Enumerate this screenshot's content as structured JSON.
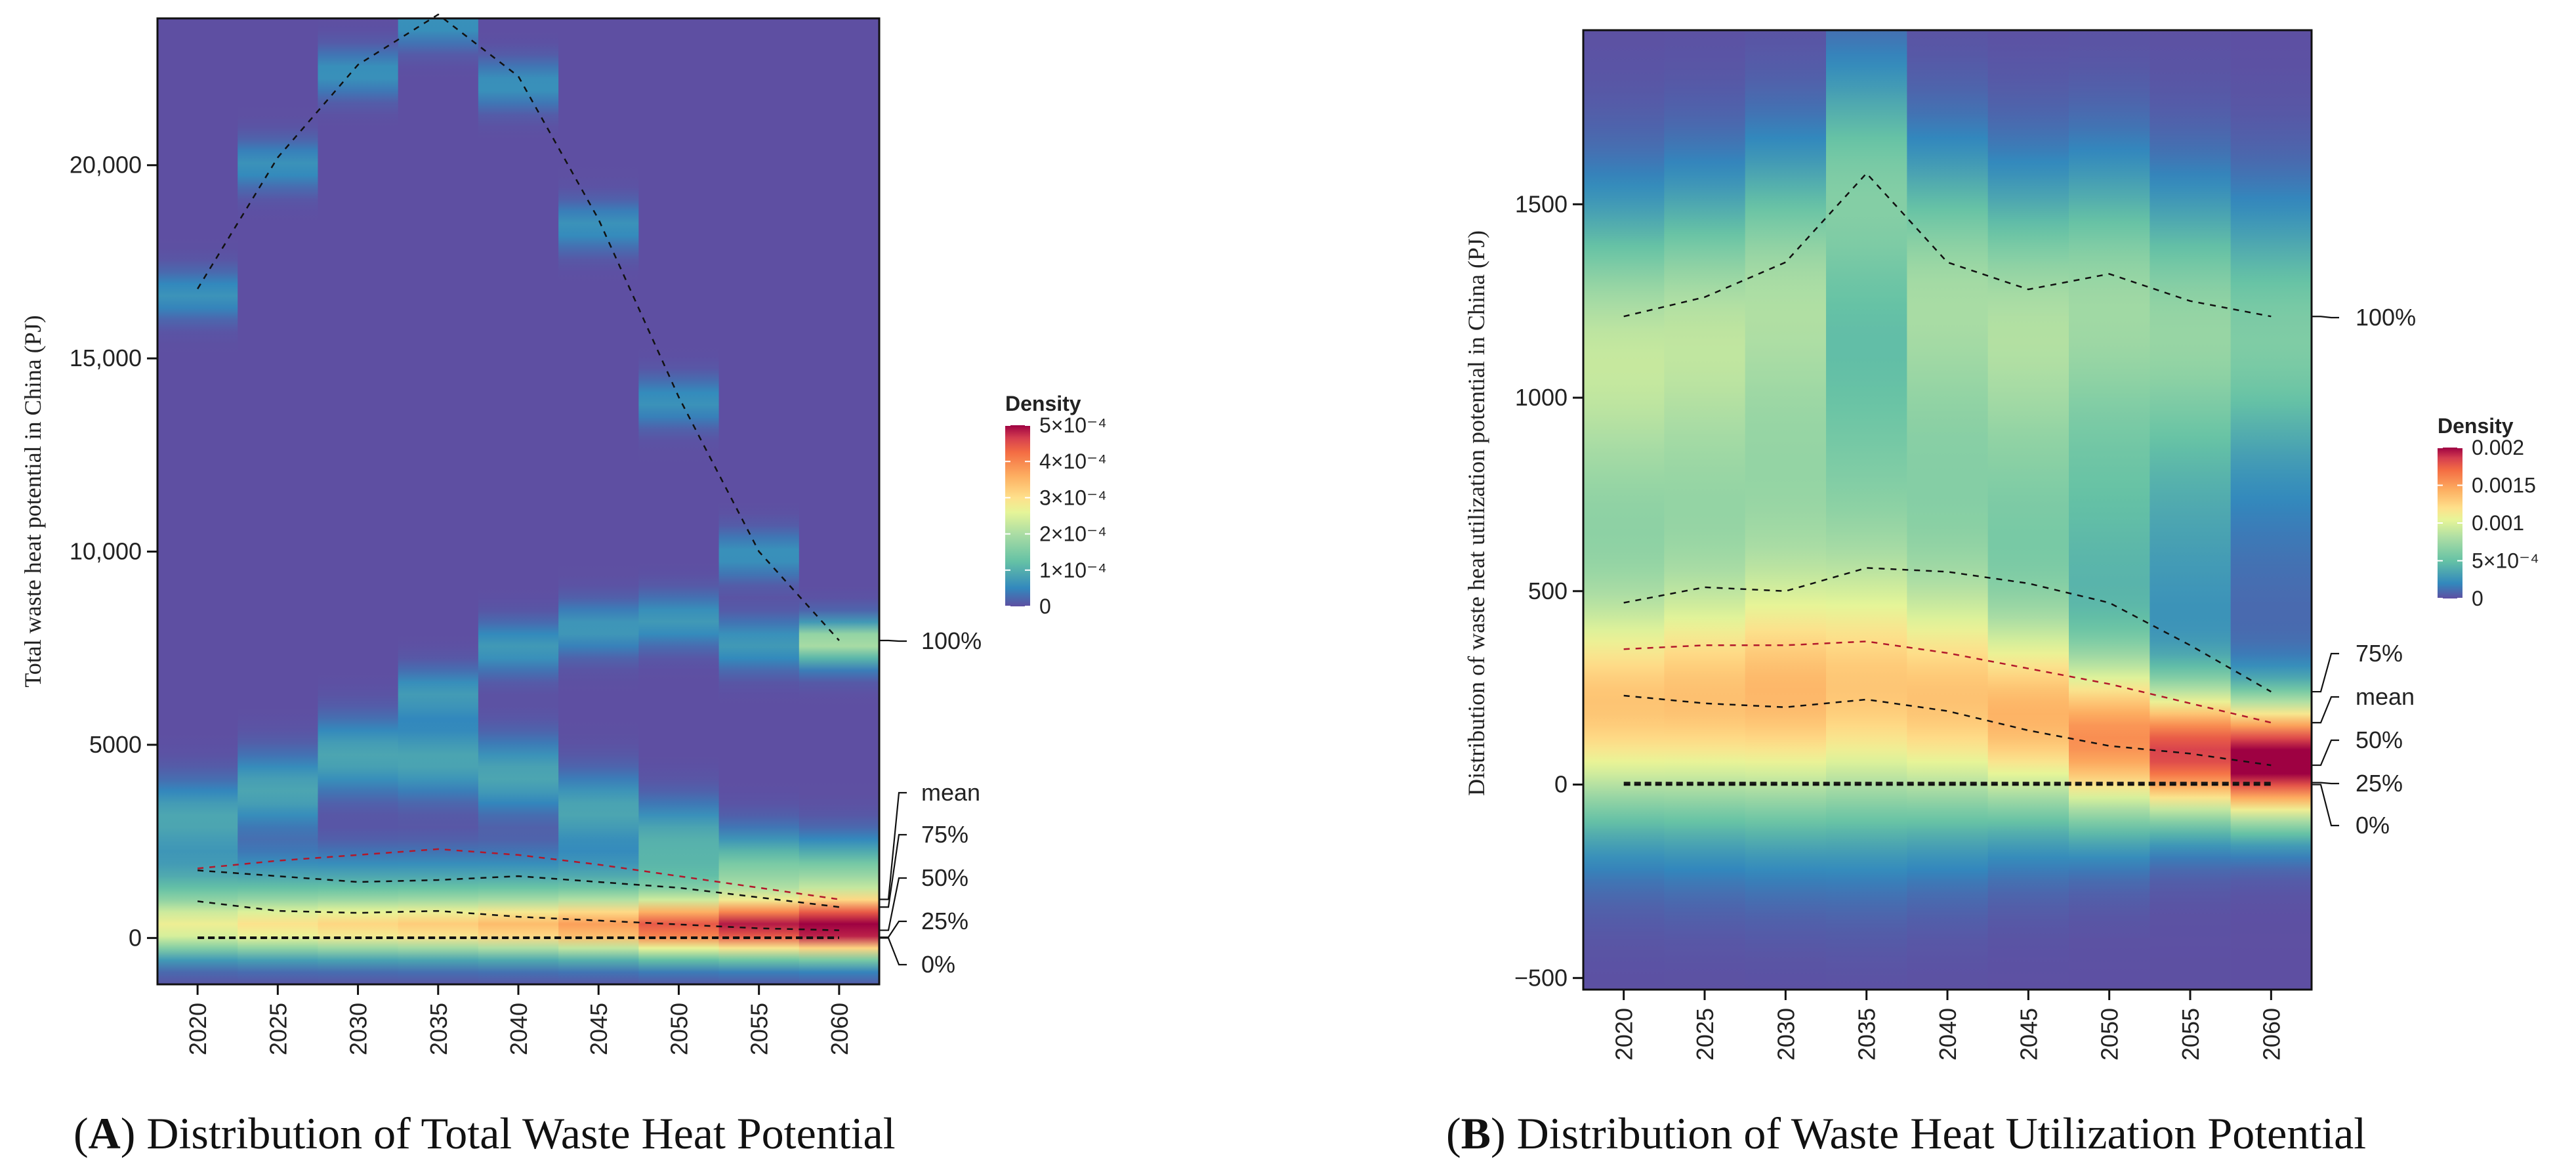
{
  "chart_data": [
    {
      "type": "heatmap",
      "panel": "A",
      "caption_letter": "A",
      "caption_text": "Distribution of Total Waste Heat Potential",
      "ylabel": "Total  waste heat potential in China (PJ)",
      "x": [
        "2020",
        "2025",
        "2030",
        "2035",
        "2040",
        "2045",
        "2050",
        "2055",
        "2060"
      ],
      "ylim": [
        -1200,
        23800
      ],
      "yticks": [
        0,
        5000,
        10000,
        15000,
        20000
      ],
      "ytick_labels": [
        "0",
        "5000",
        "10,000",
        "15,000",
        "20,000"
      ],
      "quantile_lines": {
        "100%": [
          16800,
          20200,
          22600,
          23900,
          22300,
          18600,
          14000,
          10000,
          7700
        ],
        "75%": [
          1750,
          1600,
          1450,
          1500,
          1600,
          1450,
          1300,
          1050,
          800
        ],
        "mean": [
          1800,
          2000,
          2150,
          2300,
          2150,
          1900,
          1600,
          1300,
          1000
        ],
        "50%": [
          950,
          700,
          650,
          700,
          550,
          450,
          350,
          250,
          200
        ],
        "25%": [
          20,
          20,
          20,
          20,
          20,
          20,
          20,
          20,
          20
        ],
        "0%": [
          0,
          0,
          0,
          0,
          0,
          0,
          0,
          0,
          0
        ]
      },
      "label_order": [
        "100%",
        "mean",
        "75%",
        "50%",
        "25%",
        "0%"
      ],
      "legend": {
        "title": "Density",
        "ticks": [
          "5×10⁻⁴",
          "4×10⁻⁴",
          "3×10⁻⁴",
          "2×10⁻⁴",
          "1×10⁻⁴",
          "0"
        ],
        "max": 0.0005
      }
    },
    {
      "type": "heatmap",
      "panel": "B",
      "caption_letter": "B",
      "caption_text": "Distribution of Waste Heat Utilization Potential",
      "ylabel": "Distribution of waste heat utilization potential in China (PJ)",
      "x": [
        "2020",
        "2025",
        "2030",
        "2035",
        "2040",
        "2045",
        "2050",
        "2055",
        "2060"
      ],
      "ylim": [
        -530,
        1950
      ],
      "yticks": [
        -500,
        0,
        500,
        1000,
        1500
      ],
      "ytick_labels": [
        "−500",
        "0",
        "500",
        "1000",
        "1500"
      ],
      "quantile_lines": {
        "100%": [
          1210,
          1260,
          1350,
          1580,
          1350,
          1280,
          1320,
          1250,
          1210
        ],
        "75%": [
          470,
          510,
          500,
          560,
          550,
          520,
          470,
          360,
          240
        ],
        "mean": [
          350,
          360,
          360,
          370,
          340,
          300,
          260,
          210,
          160
        ],
        "50%": [
          230,
          210,
          200,
          220,
          190,
          140,
          100,
          80,
          50
        ],
        "25%": [
          5,
          5,
          5,
          5,
          5,
          5,
          5,
          5,
          5
        ],
        "0%": [
          0,
          0,
          0,
          0,
          0,
          0,
          0,
          0,
          0
        ]
      },
      "label_order": [
        "100%",
        "75%",
        "mean",
        "50%",
        "25%",
        "0%"
      ],
      "legend": {
        "title": "Density",
        "ticks": [
          "0.002",
          "0.0015",
          "0.001",
          "5×10⁻⁴",
          "0"
        ],
        "max": 0.002
      }
    }
  ]
}
